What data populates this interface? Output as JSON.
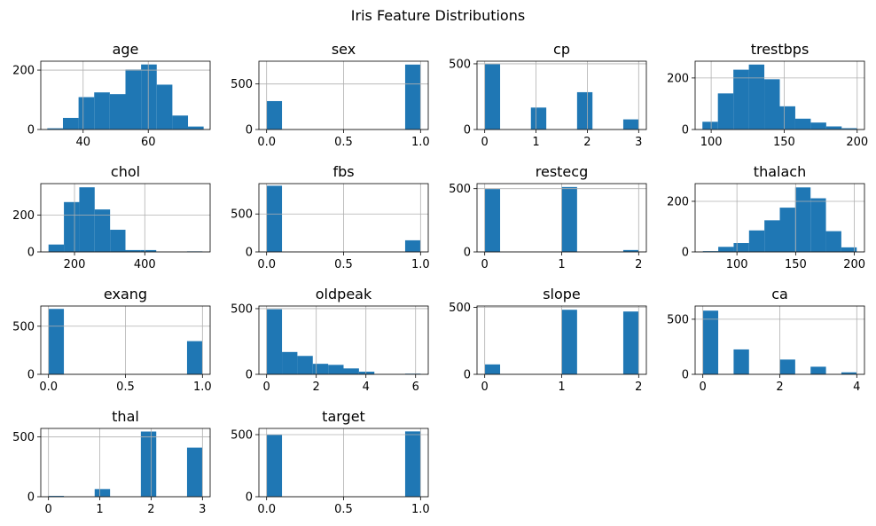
{
  "title": "Iris Feature Distributions",
  "colors": {
    "bar": "#1f77b4",
    "grid": "#b0b0b0"
  },
  "chart_data": [
    {
      "type": "bar",
      "title": "age",
      "xlim": [
        27,
        79
      ],
      "ylim": [
        0,
        230
      ],
      "bin_edges": [
        29,
        33.8,
        38.6,
        43.4,
        48.2,
        53,
        57.8,
        62.6,
        67.4,
        72.2,
        77
      ],
      "counts": [
        4,
        39,
        109,
        125,
        119,
        202,
        219,
        151,
        47,
        10
      ],
      "xticks": [
        40,
        60
      ],
      "xtick_labels": [
        "40",
        "60"
      ],
      "yticks": [
        0,
        200
      ],
      "ytick_labels": [
        "0",
        "200"
      ]
    },
    {
      "type": "bar",
      "title": "sex",
      "xlim": [
        -0.05,
        1.05
      ],
      "ylim": [
        0,
        750
      ],
      "bin_edges": [
        0,
        0.1,
        0.2,
        0.3,
        0.4,
        0.5,
        0.6,
        0.7,
        0.8,
        0.9,
        1.0
      ],
      "counts": [
        312,
        0,
        0,
        0,
        0,
        0,
        0,
        0,
        0,
        713
      ],
      "xticks": [
        0,
        0.5,
        1
      ],
      "xtick_labels": [
        "0.0",
        "0.5",
        "1.0"
      ],
      "yticks": [
        0,
        500
      ],
      "ytick_labels": [
        "0",
        "500"
      ]
    },
    {
      "type": "bar",
      "title": "cp",
      "xlim": [
        -0.15,
        3.15
      ],
      "ylim": [
        0,
        520
      ],
      "bin_edges": [
        0,
        0.3,
        0.6,
        0.9,
        1.2,
        1.5,
        1.8,
        2.1,
        2.4,
        2.7,
        3.0
      ],
      "counts": [
        497,
        0,
        0,
        167,
        0,
        0,
        284,
        0,
        0,
        77
      ],
      "xticks": [
        0,
        1,
        2,
        3
      ],
      "xtick_labels": [
        "0",
        "1",
        "2",
        "3"
      ],
      "yticks": [
        0,
        500
      ],
      "ytick_labels": [
        "0",
        "500"
      ]
    },
    {
      "type": "bar",
      "title": "trestbps",
      "xlim": [
        89,
        205
      ],
      "ylim": [
        0,
        265
      ],
      "bin_edges": [
        94,
        104.6,
        115.2,
        125.8,
        136.4,
        147,
        157.6,
        168.2,
        178.8,
        189.4,
        200
      ],
      "counts": [
        30,
        140,
        232,
        252,
        195,
        90,
        42,
        27,
        12,
        5
      ],
      "xticks": [
        100,
        150,
        200
      ],
      "xtick_labels": [
        "100",
        "150",
        "200"
      ],
      "yticks": [
        0,
        200
      ],
      "ytick_labels": [
        "0",
        "200"
      ]
    },
    {
      "type": "bar",
      "title": "chol",
      "xlim": [
        104,
        586
      ],
      "ylim": [
        0,
        370
      ],
      "bin_edges": [
        126,
        169.8,
        213.6,
        257.4,
        301.2,
        345,
        388.8,
        432.6,
        476.4,
        520.2,
        564
      ],
      "counts": [
        40,
        270,
        350,
        230,
        120,
        10,
        10,
        0,
        0,
        3
      ],
      "xticks": [
        200,
        400
      ],
      "xtick_labels": [
        "200",
        "400"
      ],
      "yticks": [
        0,
        200
      ],
      "ytick_labels": [
        "0",
        "200"
      ]
    },
    {
      "type": "bar",
      "title": "fbs",
      "xlim": [
        -0.05,
        1.05
      ],
      "ylim": [
        0,
        900
      ],
      "bin_edges": [
        0,
        0.1,
        0.2,
        0.3,
        0.4,
        0.5,
        0.6,
        0.7,
        0.8,
        0.9,
        1.0
      ],
      "counts": [
        872,
        0,
        0,
        0,
        0,
        0,
        0,
        0,
        0,
        153
      ],
      "xticks": [
        0,
        0.5,
        1
      ],
      "xtick_labels": [
        "0.0",
        "0.5",
        "1.0"
      ],
      "yticks": [
        0,
        500
      ],
      "ytick_labels": [
        "0",
        "500"
      ]
    },
    {
      "type": "bar",
      "title": "restecg",
      "xlim": [
        -0.1,
        2.1
      ],
      "ylim": [
        0,
        540
      ],
      "bin_edges": [
        0,
        0.2,
        0.4,
        0.6,
        0.8,
        1.0,
        1.2,
        1.4,
        1.6,
        1.8,
        2.0
      ],
      "counts": [
        497,
        0,
        0,
        0,
        0,
        513,
        0,
        0,
        0,
        15
      ],
      "xticks": [
        0,
        1,
        2
      ],
      "xtick_labels": [
        "0",
        "1",
        "2"
      ],
      "yticks": [
        0,
        500
      ],
      "ytick_labels": [
        "0",
        "500"
      ]
    },
    {
      "type": "bar",
      "title": "thalach",
      "xlim": [
        64.4,
        208.6
      ],
      "ylim": [
        0,
        270
      ],
      "bin_edges": [
        71,
        84.1,
        97.2,
        110.3,
        123.4,
        136.5,
        149.6,
        162.7,
        175.8,
        188.9,
        202
      ],
      "counts": [
        3,
        20,
        35,
        85,
        125,
        175,
        255,
        212,
        82,
        18
      ],
      "xticks": [
        100,
        150,
        200
      ],
      "xtick_labels": [
        "100",
        "150",
        "200"
      ],
      "yticks": [
        0,
        200
      ],
      "ytick_labels": [
        "0",
        "200"
      ]
    },
    {
      "type": "bar",
      "title": "exang",
      "xlim": [
        -0.05,
        1.05
      ],
      "ylim": [
        0,
        710
      ],
      "bin_edges": [
        0,
        0.1,
        0.2,
        0.3,
        0.4,
        0.5,
        0.6,
        0.7,
        0.8,
        0.9,
        1.0
      ],
      "counts": [
        680,
        0,
        0,
        0,
        0,
        0,
        0,
        0,
        0,
        345
      ],
      "xticks": [
        0,
        0.5,
        1
      ],
      "xtick_labels": [
        "0.0",
        "0.5",
        "1.0"
      ],
      "yticks": [
        0,
        500
      ],
      "ytick_labels": [
        "0",
        "500"
      ]
    },
    {
      "type": "bar",
      "title": "oldpeak",
      "xlim": [
        -0.31,
        6.51
      ],
      "ylim": [
        0,
        520
      ],
      "bin_edges": [
        0,
        0.62,
        1.24,
        1.86,
        2.48,
        3.1,
        3.72,
        4.34,
        4.96,
        5.58,
        6.2
      ],
      "counts": [
        495,
        170,
        140,
        80,
        72,
        45,
        20,
        0,
        0,
        5
      ],
      "xticks": [
        0,
        2,
        4,
        6
      ],
      "xtick_labels": [
        "0",
        "2",
        "4",
        "6"
      ],
      "yticks": [
        0,
        500
      ],
      "ytick_labels": [
        "0",
        "500"
      ]
    },
    {
      "type": "bar",
      "title": "slope",
      "xlim": [
        -0.1,
        2.1
      ],
      "ylim": [
        0,
        510
      ],
      "bin_edges": [
        0,
        0.2,
        0.4,
        0.6,
        0.8,
        1.0,
        1.2,
        1.4,
        1.6,
        1.8,
        2.0
      ],
      "counts": [
        74,
        0,
        0,
        0,
        0,
        482,
        0,
        0,
        0,
        469
      ],
      "xticks": [
        0,
        1,
        2
      ],
      "xtick_labels": [
        "0",
        "1",
        "2"
      ],
      "yticks": [
        0,
        500
      ],
      "ytick_labels": [
        "0",
        "500"
      ]
    },
    {
      "type": "bar",
      "title": "ca",
      "xlim": [
        -0.2,
        4.2
      ],
      "ylim": [
        0,
        620
      ],
      "bin_edges": [
        0,
        0.4,
        0.8,
        1.2,
        1.6,
        2.0,
        2.4,
        2.8,
        3.2,
        3.6,
        4.0
      ],
      "counts": [
        578,
        0,
        226,
        0,
        0,
        134,
        0,
        69,
        0,
        18
      ],
      "xticks": [
        0,
        2,
        4
      ],
      "xtick_labels": [
        "0",
        "2",
        "4"
      ],
      "yticks": [
        0,
        500
      ],
      "ytick_labels": [
        "0",
        "500"
      ]
    },
    {
      "type": "bar",
      "title": "thal",
      "xlim": [
        -0.15,
        3.15
      ],
      "ylim": [
        0,
        570
      ],
      "bin_edges": [
        0,
        0.3,
        0.6,
        0.9,
        1.2,
        1.5,
        1.8,
        2.1,
        2.4,
        2.7,
        3.0
      ],
      "counts": [
        7,
        0,
        0,
        64,
        0,
        0,
        544,
        0,
        0,
        410
      ],
      "xticks": [
        0,
        1,
        2,
        3
      ],
      "xtick_labels": [
        "0",
        "1",
        "2",
        "3"
      ],
      "yticks": [
        0,
        500
      ],
      "ytick_labels": [
        "0",
        "500"
      ]
    },
    {
      "type": "bar",
      "title": "target",
      "xlim": [
        -0.05,
        1.05
      ],
      "ylim": [
        0,
        550
      ],
      "bin_edges": [
        0,
        0.1,
        0.2,
        0.3,
        0.4,
        0.5,
        0.6,
        0.7,
        0.8,
        0.9,
        1.0
      ],
      "counts": [
        499,
        0,
        0,
        0,
        0,
        0,
        0,
        0,
        0,
        526
      ],
      "xticks": [
        0,
        0.5,
        1
      ],
      "xtick_labels": [
        "0.0",
        "0.5",
        "1.0"
      ],
      "yticks": [
        0,
        500
      ],
      "ytick_labels": [
        "0",
        "500"
      ]
    }
  ]
}
